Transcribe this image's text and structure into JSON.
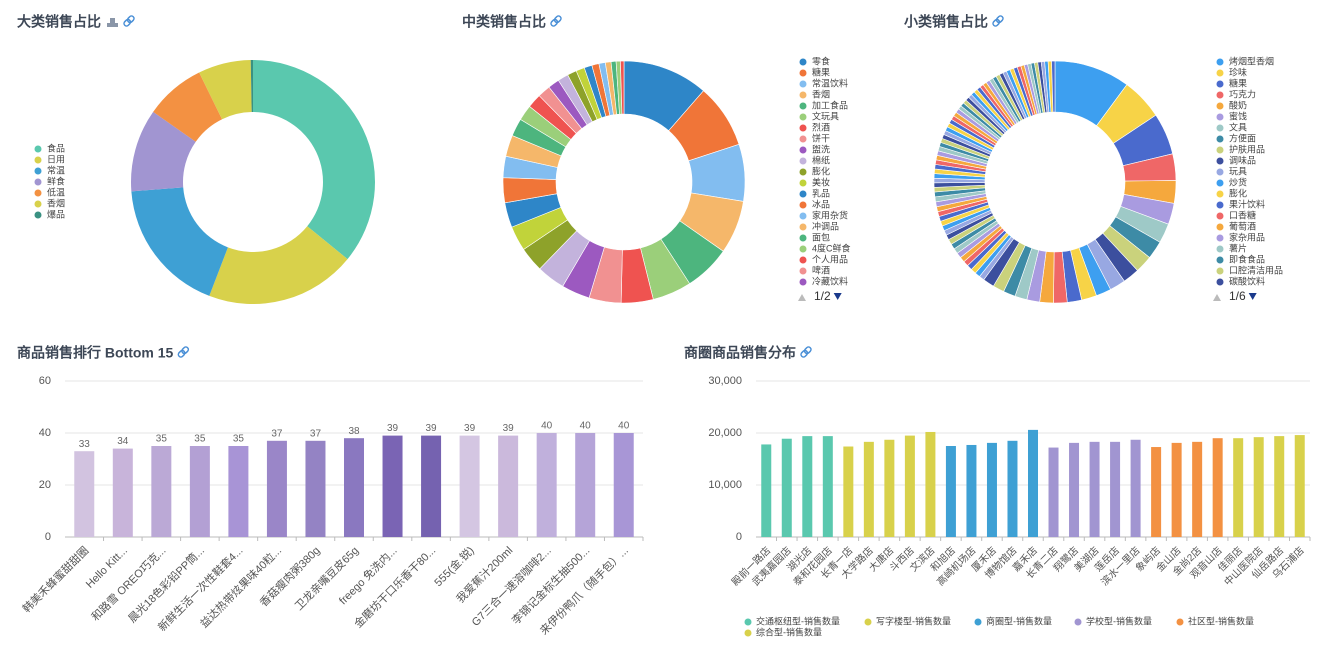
{
  "chart_data": [
    {
      "type": "pie",
      "title": "大类销售占比",
      "categories": [
        "食品",
        "日用",
        "常温",
        "鲜食",
        "低温",
        "香烟",
        "爆品"
      ],
      "values": [
        36,
        20,
        18,
        11,
        8,
        7,
        0.3
      ],
      "colors": [
        "#5ac8ae",
        "#d8d14b",
        "#3ea0d4",
        "#a195d1",
        "#f39142",
        "#d8d14b",
        "#3a9182"
      ]
    },
    {
      "type": "pie",
      "title": "中类销售占比",
      "legend_page": "1/2",
      "categories": [
        "零食",
        "糖果",
        "常温饮料",
        "香烟",
        "加工食品",
        "文玩具",
        "烈酒",
        "饼干",
        "盥洗",
        "棉纸",
        "膨化",
        "美妆",
        "乳品",
        "冰品",
        "家用杂货",
        "冲调品",
        "面包",
        "4度C鲜食",
        "个人用品",
        "啤酒",
        "冷藏饮料",
        null,
        null,
        null,
        null,
        null,
        null,
        null,
        null,
        null,
        null
      ],
      "values": [
        12,
        9,
        8,
        7.5,
        6.5,
        5.5,
        4.5,
        4.5,
        4,
        4,
        3.5,
        3.5,
        3.5,
        3.5,
        3,
        3,
        2.5,
        2.2,
        2,
        1.8,
        1.6,
        1.5,
        1.3,
        1.2,
        1.1,
        1,
        0.9,
        0.8,
        0.7,
        0.6,
        0.5
      ],
      "palette": [
        "#2e86c8",
        "#f07538",
        "#82bdf0",
        "#f5b76a",
        "#4db57e",
        "#9bcf7a",
        "#ef5350",
        "#f19191",
        "#9c59c0",
        "#c3b3dc",
        "#8ea22a",
        "#c1d33a"
      ]
    },
    {
      "type": "pie",
      "title": "小类销售占比",
      "legend_page": "1/6",
      "categories": [
        "烤烟型香烟",
        "珍味",
        "糖果",
        "巧克力",
        "酸奶",
        "蜜饯",
        "文具",
        "方便面",
        "护肤用品",
        "调味品",
        "玩具",
        "炒货",
        "膨化",
        "果汁饮料",
        "口香糖",
        "葡萄酒",
        "家杂用品",
        "薯片",
        "即食食品",
        "口腔清洁用品",
        "碳酸饮料",
        null,
        null,
        null,
        null,
        null,
        null,
        null,
        null,
        null,
        null,
        null,
        null,
        null,
        null,
        null,
        null,
        null,
        null,
        null,
        null,
        null,
        null,
        null,
        null,
        null,
        null,
        null,
        null,
        null,
        null,
        null,
        null,
        null,
        null,
        null,
        null,
        null,
        null,
        null,
        null,
        null,
        null,
        null,
        null,
        null,
        null,
        null,
        null,
        null,
        null,
        null,
        null,
        null,
        null,
        null,
        null,
        null,
        null,
        null,
        null,
        null,
        null,
        null,
        null,
        null,
        null,
        null,
        null,
        null,
        null
      ],
      "values": [
        10,
        5.5,
        5.5,
        3.5,
        3,
        2.8,
        2.6,
        2.4,
        2.3,
        2.2,
        2.1,
        2,
        2,
        1.9,
        1.8,
        1.8,
        1.7,
        1.6,
        1.6,
        1.5,
        1.5,
        0.7,
        0.7,
        0.7,
        0.7,
        0.7,
        0.7,
        0.7,
        0.7,
        0.7,
        0.7,
        0.65,
        0.65,
        0.65,
        0.65,
        0.65,
        0.65,
        0.65,
        0.65,
        0.65,
        0.65,
        0.6,
        0.6,
        0.6,
        0.6,
        0.6,
        0.6,
        0.6,
        0.6,
        0.6,
        0.6,
        0.55,
        0.55,
        0.55,
        0.55,
        0.55,
        0.55,
        0.55,
        0.55,
        0.55,
        0.55,
        0.5,
        0.5,
        0.5,
        0.5,
        0.5,
        0.5,
        0.5,
        0.5,
        0.5,
        0.5,
        0.5,
        0.5,
        0.5,
        0.5,
        0.5,
        0.5,
        0.5,
        0.5,
        0.5,
        0.5,
        0.45,
        0.45,
        0.45,
        0.45,
        0.45,
        0.45,
        0.45,
        0.45,
        0.45,
        0.45
      ],
      "palette": [
        "#3d9ff0",
        "#f7d347",
        "#4a6acd",
        "#ef6767",
        "#f5a83d",
        "#a99be0",
        "#9ec9c7",
        "#3d8ba6",
        "#cad27c",
        "#3c4f9e",
        "#98a8e2"
      ]
    },
    {
      "type": "bar",
      "title": "商品销售排行 Bottom 15",
      "categories": [
        "韩美禾蜂蜜甜甜圈",
        "Hello Kitt...",
        "和路雪 OREO巧克...",
        "晨光18色彩铅PP筒...",
        "新鲜生活一次性鞋套4...",
        "益达热带炫果味40粒...",
        "香菇瘦肉粥380g",
        "卫龙亲嘴豆皮65g",
        "freego 免洗内...",
        "金磨坊干口乐香干80...",
        "555(金.锐)",
        "我爱蕉汁200ml",
        "G7三合一速溶咖啡2...",
        "李锦记金标生抽500...",
        "来伊份鸭爪（随手包）..."
      ],
      "values": [
        33,
        34,
        35,
        35,
        35,
        37,
        37,
        38,
        39,
        39,
        39,
        39,
        40,
        40,
        40
      ],
      "colors": [
        "#d2c3e0",
        "#c8b4da",
        "#bba9d6",
        "#b3a0d4",
        "#a894d6",
        "#9a86c8",
        "#9483c4",
        "#8a78c0",
        "#7a64b4",
        "#7562b0",
        "#d4c6e2",
        "#cbb9dc",
        "#c0b0dc",
        "#b5a4d8",
        "#a896d6"
      ],
      "ylim": [
        0,
        60
      ],
      "yticks": [
        0,
        20,
        40,
        60
      ],
      "grid": true
    },
    {
      "type": "stacked_bar",
      "title": "商圈商品销售分布",
      "categories": [
        "殿前一路店",
        "武夷嘉园店",
        "湖光店",
        "泰和花园店",
        "长青一店",
        "大学路店",
        "大唐店",
        "斗西店",
        "文滨店",
        "和旭店",
        "高崎机场店",
        "厦禾店",
        "博物馆店",
        "嘉禾店",
        "长青二店",
        "翔鹭店",
        "美湖店",
        "莲岳店",
        "滨水一里店",
        "象屿店",
        "金山店",
        "金尚2店",
        "观音山店",
        "佳丽店",
        "中山医院店",
        "仙岳路店",
        "乌石浦店"
      ],
      "series": [
        {
          "name": "交通枢纽型-销售数量",
          "color": "#5ac8ae",
          "values": [
            17800,
            18900,
            19400,
            19400,
            null,
            null,
            null,
            null,
            null,
            null,
            null,
            null,
            null,
            null,
            null,
            null,
            null,
            null,
            null,
            null,
            null,
            null,
            null,
            null,
            null,
            null,
            null
          ]
        },
        {
          "name": "写字楼型-销售数量",
          "color": "#d8d14b",
          "values": [
            null,
            null,
            null,
            null,
            17400,
            18300,
            18700,
            19500,
            20200,
            null,
            null,
            null,
            null,
            null,
            null,
            null,
            null,
            null,
            null,
            null,
            null,
            null,
            null,
            null,
            null,
            null,
            null
          ]
        },
        {
          "name": "商圈型-销售数量",
          "color": "#3ea0d4",
          "values": [
            null,
            null,
            null,
            null,
            null,
            null,
            null,
            null,
            null,
            17500,
            17700,
            18100,
            18500,
            20600,
            null,
            null,
            null,
            null,
            null,
            null,
            null,
            null,
            null,
            null,
            null,
            null,
            null
          ]
        },
        {
          "name": "学校型-销售数量",
          "color": "#a195d1",
          "values": [
            null,
            null,
            null,
            null,
            null,
            null,
            null,
            null,
            null,
            null,
            null,
            null,
            null,
            null,
            17200,
            18100,
            18300,
            18300,
            18700,
            null,
            null,
            null,
            null,
            null,
            null,
            null,
            null
          ]
        },
        {
          "name": "社区型-销售数量",
          "color": "#f39142",
          "values": [
            null,
            null,
            null,
            null,
            null,
            null,
            null,
            null,
            null,
            null,
            null,
            null,
            null,
            null,
            null,
            null,
            null,
            null,
            null,
            17300,
            18100,
            18300,
            19000,
            null,
            null,
            null,
            null
          ]
        },
        {
          "name": "综合型-销售数量",
          "color": "#d8d14b",
          "values": [
            null,
            null,
            null,
            null,
            null,
            null,
            null,
            null,
            null,
            null,
            null,
            null,
            null,
            null,
            null,
            null,
            null,
            null,
            null,
            null,
            null,
            null,
            null,
            19000,
            19200,
            19400,
            19600
          ]
        }
      ],
      "ylim": [
        0,
        30000
      ],
      "yticks": [
        0,
        {
          "value": 10000,
          "label": "10,000"
        },
        {
          "value": 20000,
          "label": "20,000"
        },
        {
          "value": 30000,
          "label": "30,000"
        }
      ],
      "grid": true
    }
  ]
}
